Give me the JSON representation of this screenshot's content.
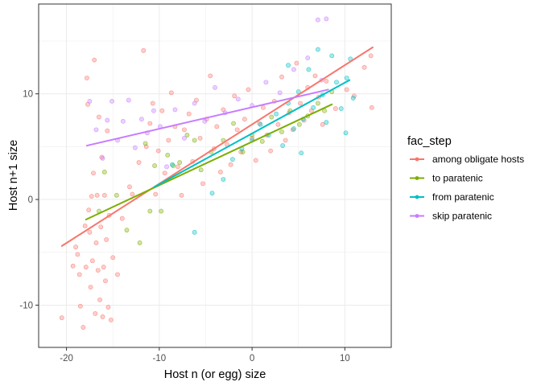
{
  "chart_data": {
    "type": "scatter",
    "xlabel": "Host n (or egg) size",
    "ylabel": "Host n+1 size",
    "xlim": [
      -23,
      15
    ],
    "ylim": [
      -14,
      18.5
    ],
    "x_ticks": [
      -20,
      -10,
      0,
      10
    ],
    "y_ticks": [
      -10,
      0,
      10
    ],
    "x_tick_labels": [
      "-20",
      "-10",
      "0",
      "10"
    ],
    "y_tick_labels": [
      "-10",
      "0",
      "10"
    ],
    "grid": true,
    "legend": {
      "title": "fac_step",
      "position": "right"
    },
    "series": [
      {
        "name": "among obligate hosts",
        "color": "#F8766D",
        "trend": [
          [
            -20.5,
            -4.4
          ],
          [
            13,
            14.4
          ]
        ],
        "points": [
          [
            -20.5,
            -11.2
          ],
          [
            -19.3,
            -6.3
          ],
          [
            -19,
            -4.5
          ],
          [
            -18.8,
            -5.2
          ],
          [
            -18.6,
            -7.1
          ],
          [
            -18.5,
            -10.1
          ],
          [
            -18.2,
            -12.1
          ],
          [
            -18,
            -2.5
          ],
          [
            -17.9,
            -6.4
          ],
          [
            -17.8,
            11.5
          ],
          [
            -17.7,
            9
          ],
          [
            -17.6,
            -1
          ],
          [
            -17.5,
            -3.1
          ],
          [
            -17.4,
            -8.3
          ],
          [
            -17.3,
            0.3
          ],
          [
            -17.2,
            -5.8
          ],
          [
            -17.1,
            2.5
          ],
          [
            -17,
            13.2
          ],
          [
            -16.9,
            -10.8
          ],
          [
            -16.8,
            -4.1
          ],
          [
            -16.7,
            0.4
          ],
          [
            -16.6,
            -6.7
          ],
          [
            -16.5,
            7.8
          ],
          [
            -16.4,
            -9.5
          ],
          [
            -16.3,
            -2.6
          ],
          [
            -16.2,
            4
          ],
          [
            -16.1,
            -11.1
          ],
          [
            -16,
            -6.4
          ],
          [
            -15.9,
            0.4
          ],
          [
            -15.8,
            -7.7
          ],
          [
            -15.7,
            -3.8
          ],
          [
            -15.6,
            6.5
          ],
          [
            -15.5,
            -10.2
          ],
          [
            -15.4,
            -1.5
          ],
          [
            -15.2,
            -11.4
          ],
          [
            -15,
            -5.5
          ],
          [
            -14.5,
            -7.1
          ],
          [
            -14,
            -1.8
          ],
          [
            -13.2,
            1.2
          ],
          [
            -12.9,
            0.5
          ],
          [
            -12.2,
            3.5
          ],
          [
            -11.7,
            14.1
          ],
          [
            -11.4,
            5
          ],
          [
            -11,
            7.2
          ],
          [
            -10.7,
            9.1
          ],
          [
            -10.4,
            0.5
          ],
          [
            -10.1,
            4.6
          ],
          [
            -9.7,
            8.4
          ],
          [
            -9.4,
            2.5
          ],
          [
            -9,
            5.6
          ],
          [
            -8.7,
            10.1
          ],
          [
            -8.3,
            6.9
          ],
          [
            -8,
            3.1
          ],
          [
            -7.6,
            0.4
          ],
          [
            -7.3,
            6.6
          ],
          [
            -6.8,
            8.1
          ],
          [
            -6.4,
            3.6
          ],
          [
            -6,
            9.4
          ],
          [
            -5.6,
            5.8
          ],
          [
            -5.3,
            1.5
          ],
          [
            -4.9,
            7.6
          ],
          [
            -4.5,
            11.7
          ],
          [
            -4.1,
            4.8
          ],
          [
            -3.8,
            6.9
          ],
          [
            -3.4,
            2.6
          ],
          [
            -3.1,
            8.5
          ],
          [
            -2.7,
            5.2
          ],
          [
            -2.3,
            3.3
          ],
          [
            -1.9,
            9.8
          ],
          [
            -1.6,
            6.6
          ],
          [
            -1.2,
            4.5
          ],
          [
            -0.8,
            7.6
          ],
          [
            -0.4,
            10.4
          ],
          [
            0,
            5.8
          ],
          [
            0.4,
            3.7
          ],
          [
            0.8,
            7.2
          ],
          [
            1.2,
            8.7
          ],
          [
            1.6,
            6.1
          ],
          [
            2,
            4.6
          ],
          [
            2.4,
            9.3
          ],
          [
            2.8,
            7.1
          ],
          [
            3.2,
            11.6
          ],
          [
            3.6,
            5.6
          ],
          [
            4,
            8.2
          ],
          [
            4.4,
            6.6
          ],
          [
            4.8,
            12.9
          ],
          [
            5.2,
            9.1
          ],
          [
            5.6,
            7.5
          ],
          [
            6,
            10.6
          ],
          [
            6.4,
            8.4
          ],
          [
            6.8,
            11.7
          ],
          [
            7.2,
            9.7
          ],
          [
            7.6,
            7.1
          ],
          [
            8,
            11.2
          ],
          [
            9,
            8.6
          ],
          [
            10.2,
            10.4
          ],
          [
            11,
            9.8
          ],
          [
            12.1,
            12.5
          ],
          [
            12.8,
            13.6
          ],
          [
            12.9,
            8.7
          ]
        ]
      },
      {
        "name": "to paratenic",
        "color": "#7CAE00",
        "trend": [
          [
            -17.9,
            -1.9
          ],
          [
            8.6,
            9
          ]
        ],
        "points": [
          [
            -16.5,
            -1.1
          ],
          [
            -15.9,
            2.6
          ],
          [
            -14.6,
            0.4
          ],
          [
            -13.5,
            -2.9
          ],
          [
            -12.1,
            -4.1
          ],
          [
            -11.5,
            5.3
          ],
          [
            -11,
            -1.1
          ],
          [
            -10.5,
            3.2
          ],
          [
            -9.8,
            -1.1
          ],
          [
            -9.1,
            4.2
          ],
          [
            -8.5,
            3.2
          ],
          [
            -7.8,
            3.5
          ],
          [
            -7,
            6.1
          ],
          [
            -6.2,
            5.6
          ],
          [
            -5.5,
            2.8
          ],
          [
            -4.4,
            4.5
          ],
          [
            -3.1,
            5.6
          ],
          [
            -2,
            7.2
          ],
          [
            -1,
            4.5
          ],
          [
            0,
            6.1
          ],
          [
            1.1,
            5.5
          ],
          [
            2.1,
            7.8
          ],
          [
            3.2,
            6.4
          ],
          [
            4.1,
            8.4
          ],
          [
            5.1,
            7.1
          ],
          [
            6,
            7.9
          ],
          [
            7.1,
            9.1
          ],
          [
            7.8,
            8.4
          ],
          [
            8.6,
            10.2
          ]
        ]
      },
      {
        "name": "from paratenic",
        "color": "#00BFC4",
        "trend": [
          [
            -10.5,
            1.2
          ],
          [
            10.5,
            11.3
          ]
        ],
        "points": [
          [
            -8.6,
            3.3
          ],
          [
            -6.2,
            -3.1
          ],
          [
            -4.3,
            0.6
          ],
          [
            -3.1,
            1.9
          ],
          [
            -2.1,
            3.8
          ],
          [
            -1.1,
            4.8
          ],
          [
            0,
            5.6
          ],
          [
            0.9,
            7.1
          ],
          [
            1.8,
            6.1
          ],
          [
            2.6,
            8.1
          ],
          [
            3.3,
            5.1
          ],
          [
            3.9,
            9.1
          ],
          [
            4.5,
            6.7
          ],
          [
            5,
            10.2
          ],
          [
            5.5,
            7.6
          ],
          [
            6.1,
            12.3
          ],
          [
            6.6,
            8.7
          ],
          [
            7.1,
            14.2
          ],
          [
            7.6,
            9.9
          ],
          [
            8,
            7.3
          ],
          [
            8.6,
            13.6
          ],
          [
            9.1,
            11.1
          ],
          [
            9.6,
            8.6
          ],
          [
            10.2,
            11.5
          ],
          [
            10.6,
            13.3
          ],
          [
            10.9,
            9.6
          ],
          [
            10.1,
            6.3
          ],
          [
            5.3,
            4.4
          ],
          [
            3.9,
            12.7
          ]
        ]
      },
      {
        "name": "skip paratenic",
        "color": "#C77CFF",
        "trend": [
          [
            -17.8,
            5.1
          ],
          [
            8.2,
            10.4
          ]
        ],
        "points": [
          [
            -17.5,
            9.3
          ],
          [
            -16.8,
            6.6
          ],
          [
            -16.1,
            3.9
          ],
          [
            -15.6,
            7.5
          ],
          [
            -15.1,
            9.3
          ],
          [
            -14.5,
            5.6
          ],
          [
            -13.9,
            7.4
          ],
          [
            -13.3,
            9.4
          ],
          [
            -12.6,
            4.9
          ],
          [
            -11.9,
            7.6
          ],
          [
            -11.3,
            6.3
          ],
          [
            -10.6,
            8.4
          ],
          [
            -9.9,
            6.9
          ],
          [
            -9.2,
            3.1
          ],
          [
            -8.3,
            8.5
          ],
          [
            -7.3,
            5.8
          ],
          [
            -6.2,
            9.1
          ],
          [
            -5.1,
            7.4
          ],
          [
            -4,
            10.6
          ],
          [
            -2.9,
            8.2
          ],
          [
            -1.5,
            9.5
          ],
          [
            0,
            8.9
          ],
          [
            1.5,
            11.1
          ],
          [
            3,
            10.1
          ],
          [
            4.5,
            12.3
          ],
          [
            6,
            13.4
          ],
          [
            7.1,
            17
          ],
          [
            8,
            17.1
          ],
          [
            7.5,
            11.3
          ]
        ]
      }
    ]
  }
}
